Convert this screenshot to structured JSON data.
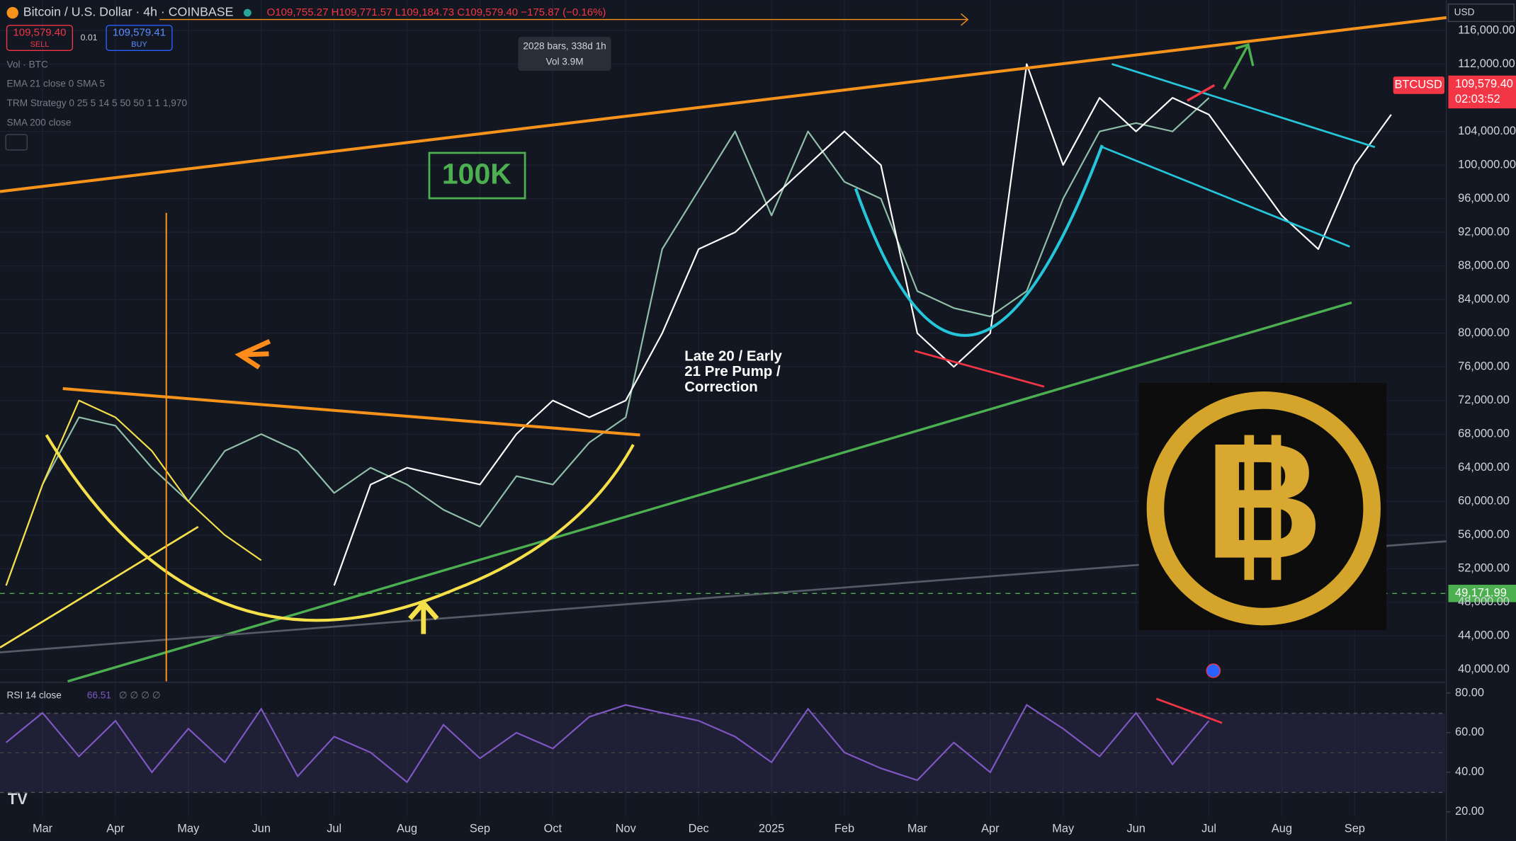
{
  "header": {
    "title": "Bitcoin / U.S. Dollar · 4h · COINBASE",
    "ohlc": "O109,755.27 H109,771.57 L109,184.73 C109,579.40 −175.87 (−0.16%)",
    "sell_price": "109,579.40",
    "sell": "SELL",
    "spread": "0.01",
    "buy_price": "109,579.41",
    "buy": "BUY"
  },
  "indicators": [
    "Vol · BTC",
    "EMA 21 close 0 SMA 5",
    "TRM Strategy 0 25 5 14 5 50 50 1 1 1,970",
    "SMA 200 close"
  ],
  "tooltip": {
    "bars": "2028 bars, 338d 1h",
    "vol": "Vol 3.9M"
  },
  "annotations": {
    "box": "100K",
    "note": [
      "Late 20 / Early",
      "21 Pre Pump /",
      "Correction"
    ]
  },
  "price_scale": {
    "currency": "USD",
    "symbol": "BTCUSD",
    "last": "109,579.40",
    "countdown": "02:03:52",
    "level": "49,171.99"
  },
  "rsi": {
    "label": "RSI 14 close",
    "value": "66.51",
    "extra": "∅ ∅ ∅ ∅"
  },
  "chart_data": {
    "type": "line",
    "categories": [
      null,
      "Mar",
      null,
      "Apr",
      null,
      "May",
      null,
      "Jun",
      null,
      "Jul",
      null,
      "Aug",
      null,
      "Sep",
      null,
      "Oct",
      null,
      "Nov",
      null,
      "Dec",
      null,
      "2025",
      null,
      "Feb",
      null,
      "Mar",
      null,
      "Apr",
      null,
      "May",
      null,
      "Jun",
      null,
      "Jul",
      null,
      "Aug",
      null,
      "Sep",
      null
    ],
    "series": [
      {
        "color": "#8fbfa8",
        "values": [
          50000,
          62000,
          70000,
          69000,
          64000,
          60000,
          66000,
          68000,
          66000,
          61000,
          64000,
          62000,
          59000,
          57000,
          63000,
          62000,
          67000,
          70000,
          90000,
          97000,
          104000,
          94000,
          104000,
          98000,
          96000,
          85000,
          83000,
          82000,
          85000,
          96000,
          104000,
          105000,
          104000,
          108000,
          null,
          null,
          null,
          null,
          null
        ]
      },
      {
        "color": "#ffffff",
        "values": [
          null,
          null,
          null,
          null,
          null,
          null,
          null,
          null,
          null,
          50000,
          62000,
          64000,
          63000,
          62000,
          68000,
          72000,
          70000,
          72000,
          80000,
          90000,
          92000,
          96000,
          100000,
          104000,
          100000,
          80000,
          76000,
          80000,
          112000,
          100000,
          108000,
          104000,
          108000,
          106000,
          100000,
          94000,
          90000,
          100000,
          106000
        ]
      },
      {
        "color": "#f5e04a",
        "values": [
          50000,
          62000,
          72000,
          70000,
          66000,
          60000,
          56000,
          53000,
          null,
          null,
          null,
          null,
          null,
          null,
          null,
          null,
          null,
          null,
          null,
          null,
          null,
          null,
          null,
          null,
          null,
          null,
          null,
          null,
          null,
          null,
          null,
          null,
          null,
          null,
          null,
          null,
          null,
          null,
          null
        ]
      }
    ],
    "ylim": [
      38600,
      119600
    ],
    "yticks": [
      {
        "value": 40000,
        "label": "40,000.00"
      },
      {
        "value": 44000,
        "label": "44,000.00"
      },
      {
        "value": 48000,
        "label": "48,000.00"
      },
      {
        "value": 52000,
        "label": "52,000.00"
      },
      {
        "value": 56000,
        "label": "56,000.00"
      },
      {
        "value": 60000,
        "label": "60,000.00"
      },
      {
        "value": 64000,
        "label": "64,000.00"
      },
      {
        "value": 68000,
        "label": "68,000.00"
      },
      {
        "value": 72000,
        "label": "72,000.00"
      },
      {
        "value": 76000,
        "label": "76,000.00"
      },
      {
        "value": 80000,
        "label": "80,000.00"
      },
      {
        "value": 84000,
        "label": "84,000.00"
      },
      {
        "value": 88000,
        "label": "88,000.00"
      },
      {
        "value": 92000,
        "label": "92,000.00"
      },
      {
        "value": 96000,
        "label": "96,000.00"
      },
      {
        "value": 100000,
        "label": "100,000.00"
      },
      {
        "value": 104000,
        "label": "104,000.00"
      },
      {
        "value": 112000,
        "label": "112,000.00"
      },
      {
        "value": 116000,
        "label": "116,000.00"
      }
    ],
    "grid": true,
    "rsi_color": "#7e57c2",
    "rsi_values": [
      55,
      70,
      48,
      66,
      40,
      62,
      45,
      72,
      38,
      58,
      50,
      35,
      64,
      47,
      60,
      52,
      68,
      74,
      70,
      66,
      58,
      45,
      72,
      50,
      42,
      36,
      55,
      40,
      74,
      62,
      48,
      70,
      44,
      66,
      null,
      null,
      null,
      null,
      null
    ],
    "rsi_ylim": [
      17.6,
      84.9
    ],
    "rsi_yticks": [
      {
        "value": 20,
        "label": "20.00"
      },
      {
        "value": 40,
        "label": "40.00"
      },
      {
        "value": 60,
        "label": "60.00"
      },
      {
        "value": 80,
        "label": "80.00"
      }
    ]
  }
}
